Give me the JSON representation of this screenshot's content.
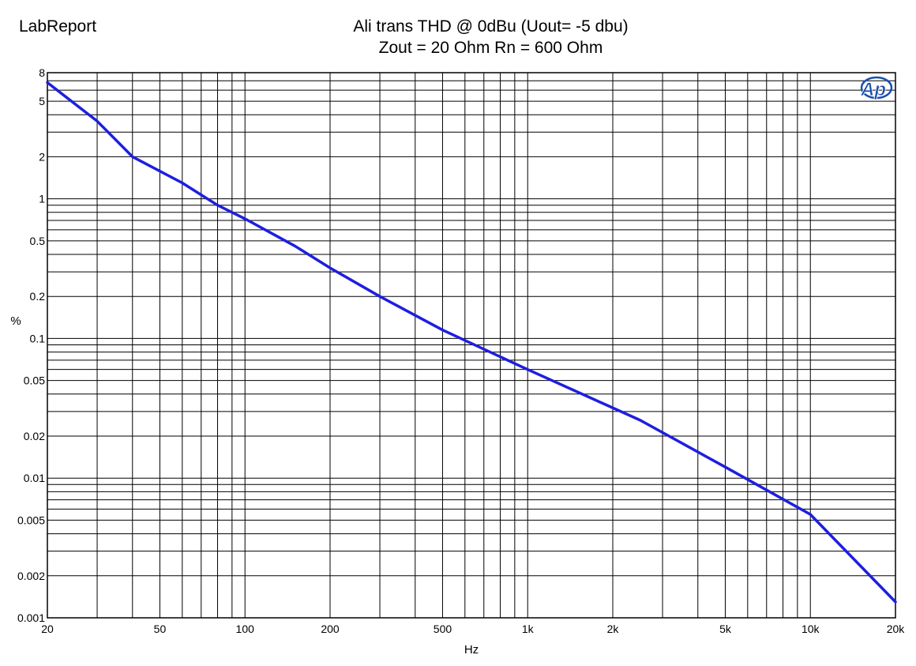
{
  "header": {
    "brand": "LabReport",
    "title_line1": "Ali trans THD @ 0dBu (Uout= -5 dbu)",
    "title_line2": "Zout = 20 Ohm  Rn = 600 Ohm"
  },
  "logo": {
    "text": "Ap",
    "icon": "audio-precision-logo-icon",
    "color": "#1a4fb0"
  },
  "colors": {
    "series": "#1e1ee0",
    "grid": "#000000"
  },
  "chart_data": {
    "type": "line",
    "title": "Ali trans THD @ 0dBu (Uout= -5 dbu)",
    "subtitle": "Zout = 20 Ohm  Rn = 600 Ohm",
    "xlabel": "Hz",
    "ylabel": "%",
    "xscale": "log",
    "yscale": "log",
    "xlim": [
      20,
      20000
    ],
    "ylim": [
      0.001,
      8
    ],
    "grid": true,
    "x_ticks": [
      20,
      50,
      100,
      200,
      500,
      1000,
      2000,
      5000,
      10000,
      20000
    ],
    "x_tick_labels": [
      "20",
      "50",
      "100",
      "200",
      "500",
      "1k",
      "2k",
      "5k",
      "10k",
      "20k"
    ],
    "y_ticks": [
      8,
      5,
      2,
      1,
      0.5,
      0.2,
      0.1,
      0.05,
      0.02,
      0.01,
      0.005,
      0.002,
      0.001
    ],
    "y_tick_labels": [
      "8",
      "5",
      "2",
      "1",
      "0.5",
      "0.2",
      "0.1",
      "0.05",
      "0.02",
      "0.01",
      "0.005",
      "0.002",
      "0.001"
    ],
    "series": [
      {
        "x": [
          20,
          30,
          40,
          60,
          80,
          100,
          150,
          200,
          300,
          500,
          1000,
          2500,
          5000,
          10000,
          20000
        ],
        "y": [
          6.8,
          3.6,
          2.0,
          1.3,
          0.9,
          0.72,
          0.46,
          0.32,
          0.2,
          0.115,
          0.06,
          0.026,
          0.012,
          0.0055,
          0.0013
        ]
      }
    ]
  }
}
